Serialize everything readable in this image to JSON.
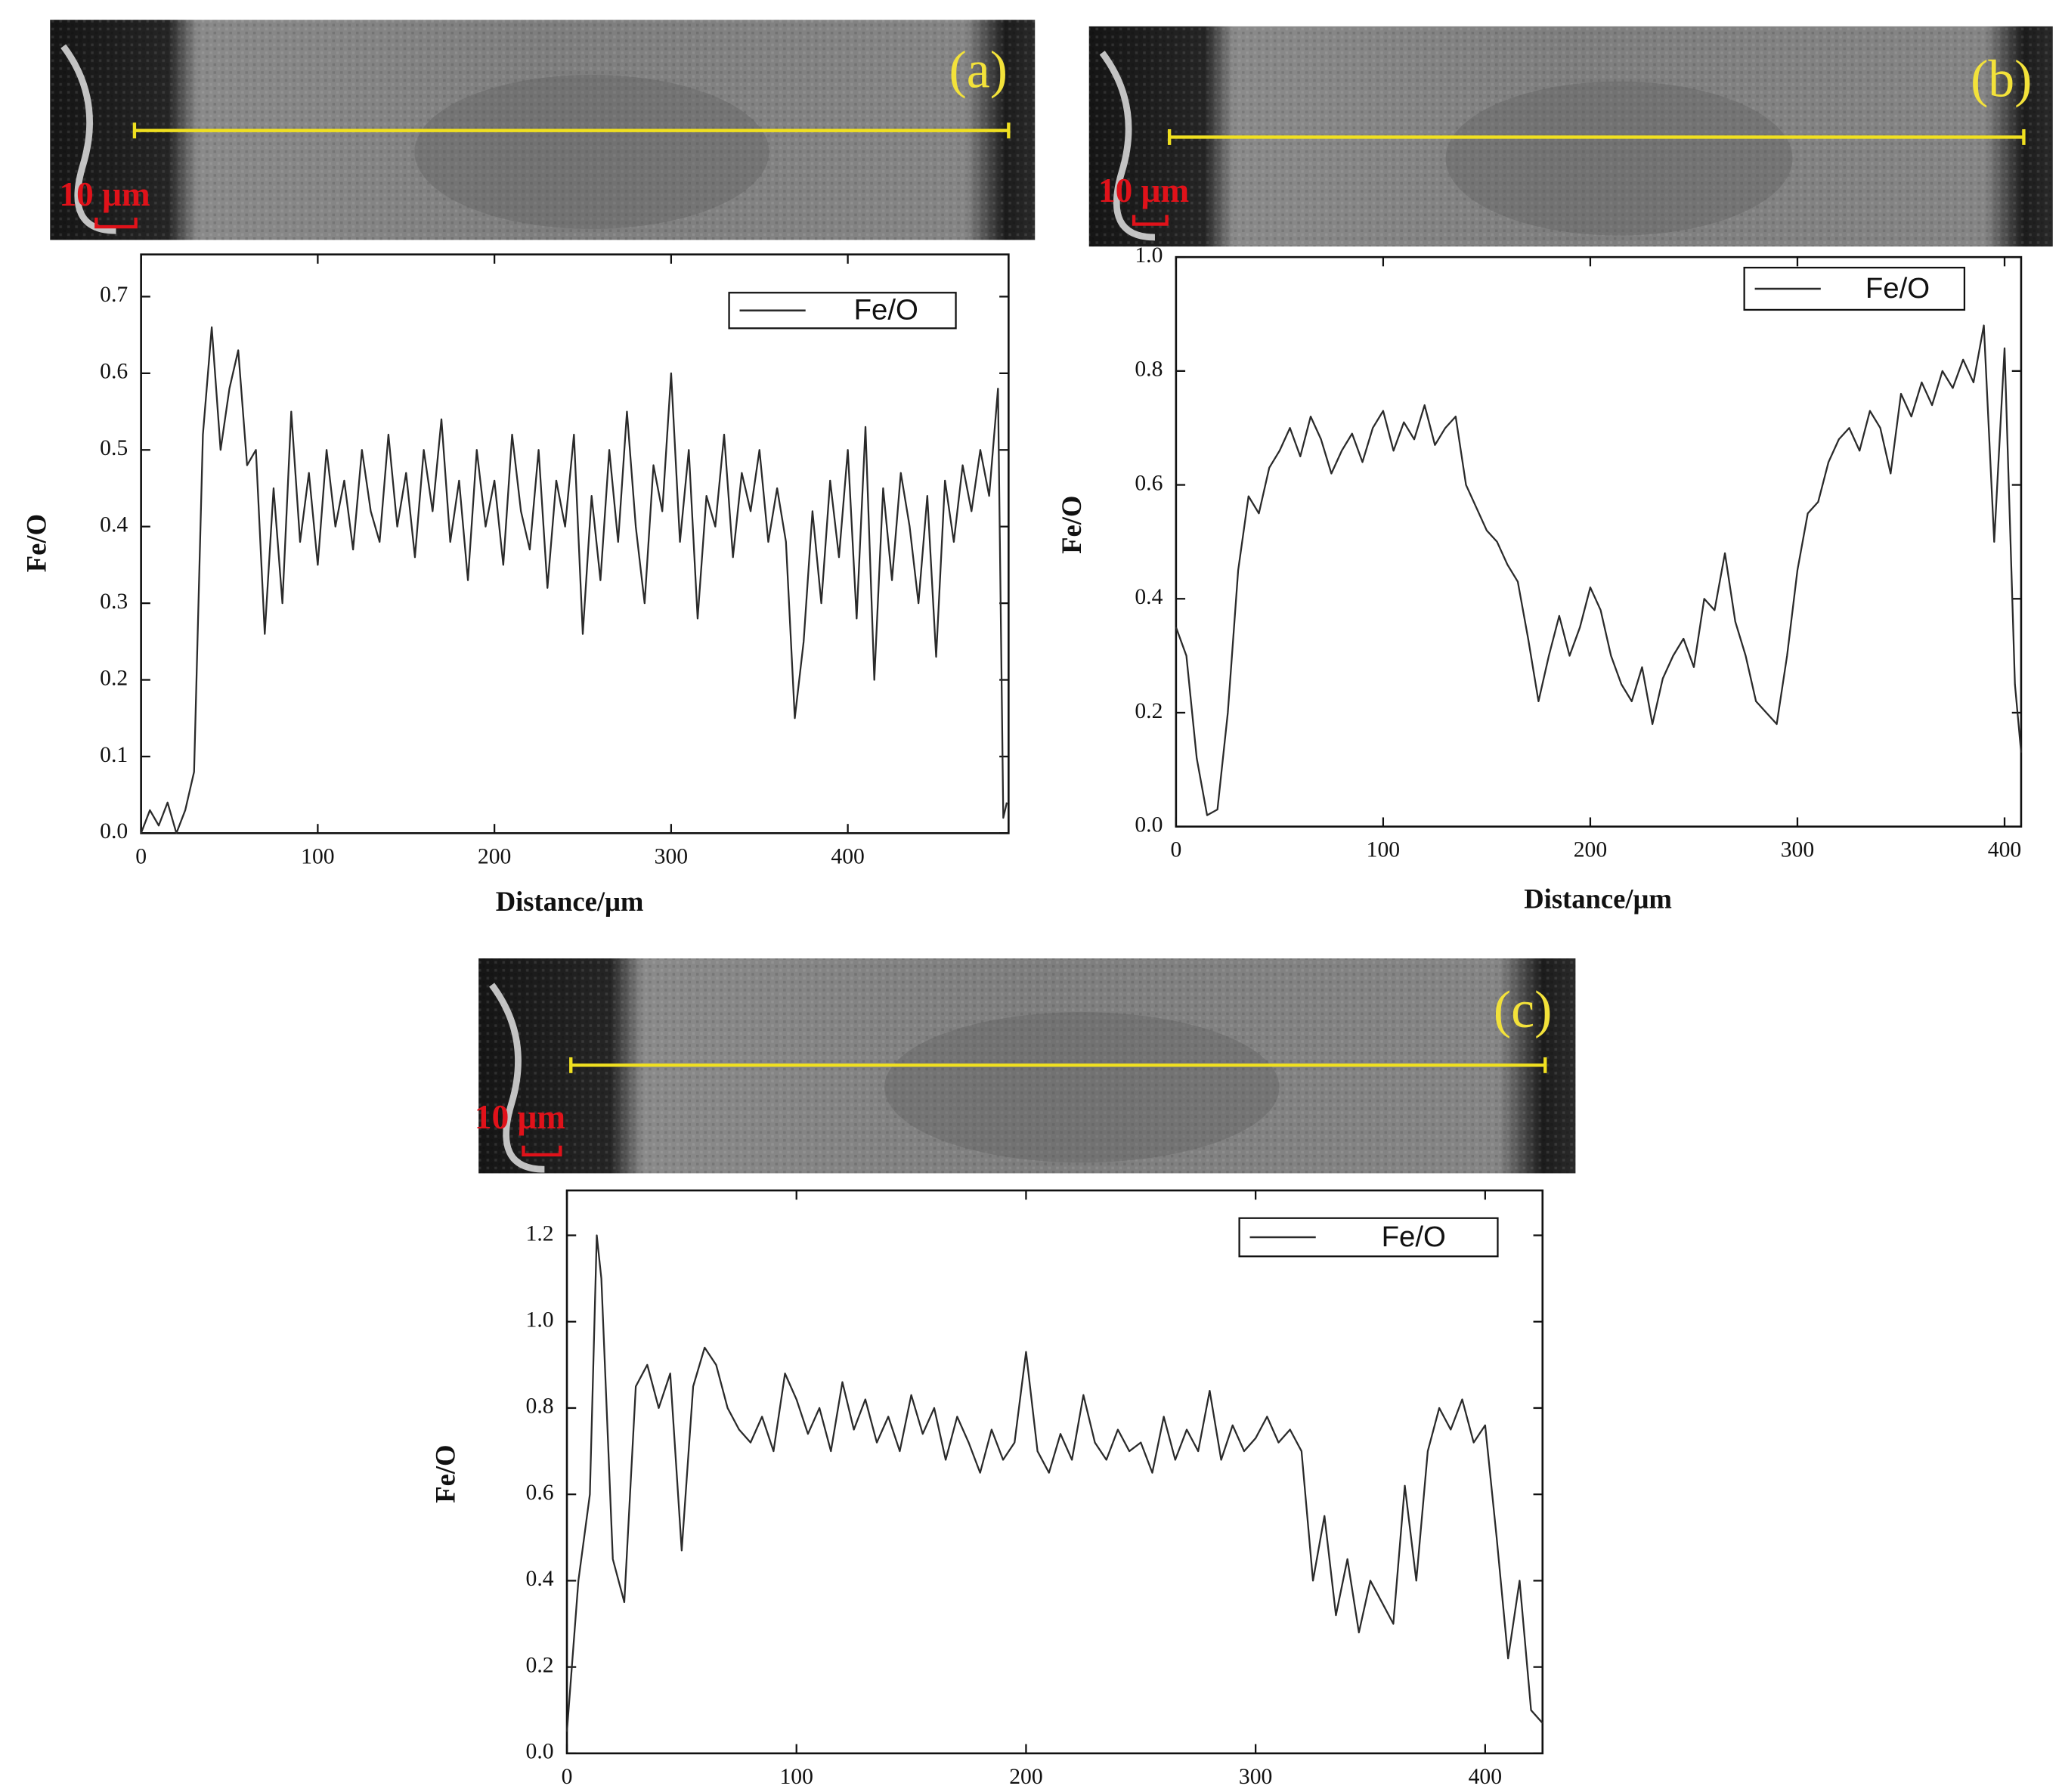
{
  "chart_data": [
    {
      "type": "line",
      "panel_label": "(a)",
      "scale_bar": "10 μm",
      "x_label": "Distance/μm",
      "y_label": "Fe/O",
      "xlim": [
        0,
        491
      ],
      "xticks": [
        0,
        100,
        200,
        300,
        400
      ],
      "ylim": [
        0,
        0.755
      ],
      "yticks": [
        {
          "value": 0,
          "label": "0.0"
        },
        0.1,
        0.2,
        0.3,
        0.4,
        0.5,
        0.6,
        0.7
      ],
      "x": [
        0,
        5,
        10,
        15,
        20,
        25,
        30,
        35,
        40,
        45,
        50,
        55,
        60,
        65,
        70,
        75,
        80,
        85,
        90,
        95,
        100,
        105,
        110,
        115,
        120,
        125,
        130,
        135,
        140,
        145,
        150,
        155,
        160,
        165,
        170,
        175,
        180,
        185,
        190,
        195,
        200,
        205,
        210,
        215,
        220,
        225,
        230,
        235,
        240,
        245,
        250,
        255,
        260,
        265,
        270,
        275,
        280,
        285,
        290,
        295,
        300,
        305,
        310,
        315,
        320,
        325,
        330,
        335,
        340,
        345,
        350,
        355,
        360,
        365,
        370,
        375,
        380,
        385,
        390,
        395,
        400,
        405,
        410,
        415,
        420,
        425,
        430,
        435,
        440,
        445,
        450,
        455,
        460,
        465,
        470,
        475,
        480,
        485,
        488,
        490
      ],
      "series": [
        {
          "name": "Fe/O",
          "color": "#2a2a2a",
          "values": [
            0.0,
            0.03,
            0.01,
            0.04,
            0.0,
            0.03,
            0.08,
            0.52,
            0.66,
            0.5,
            0.58,
            0.63,
            0.48,
            0.5,
            0.26,
            0.45,
            0.3,
            0.55,
            0.38,
            0.47,
            0.35,
            0.5,
            0.4,
            0.46,
            0.37,
            0.5,
            0.42,
            0.38,
            0.52,
            0.4,
            0.47,
            0.36,
            0.5,
            0.42,
            0.54,
            0.38,
            0.46,
            0.33,
            0.5,
            0.4,
            0.46,
            0.35,
            0.52,
            0.42,
            0.37,
            0.5,
            0.32,
            0.46,
            0.4,
            0.52,
            0.26,
            0.44,
            0.33,
            0.5,
            0.38,
            0.55,
            0.4,
            0.3,
            0.48,
            0.42,
            0.6,
            0.38,
            0.5,
            0.28,
            0.44,
            0.4,
            0.52,
            0.36,
            0.47,
            0.42,
            0.5,
            0.38,
            0.45,
            0.38,
            0.15,
            0.25,
            0.42,
            0.3,
            0.46,
            0.36,
            0.5,
            0.28,
            0.53,
            0.2,
            0.45,
            0.33,
            0.47,
            0.4,
            0.3,
            0.44,
            0.23,
            0.46,
            0.38,
            0.48,
            0.42,
            0.5,
            0.44,
            0.58,
            0.02,
            0.04
          ]
        }
      ]
    },
    {
      "type": "line",
      "panel_label": "(b)",
      "scale_bar": "10 μm",
      "x_label": "Distance/μm",
      "y_label": "Fe/O",
      "xlim": [
        0,
        408
      ],
      "xticks": [
        0,
        100,
        200,
        300,
        400
      ],
      "ylim": [
        0,
        1.0
      ],
      "yticks": [
        {
          "value": 0,
          "label": "0.0"
        },
        0.2,
        0.4,
        0.6,
        0.8,
        {
          "value": 1,
          "label": "1.0"
        }
      ],
      "x": [
        0,
        5,
        10,
        15,
        20,
        25,
        30,
        35,
        40,
        45,
        50,
        55,
        60,
        65,
        70,
        75,
        80,
        85,
        90,
        95,
        100,
        105,
        110,
        115,
        120,
        125,
        130,
        135,
        140,
        145,
        150,
        155,
        160,
        165,
        170,
        175,
        180,
        185,
        190,
        195,
        200,
        205,
        210,
        215,
        220,
        225,
        230,
        235,
        240,
        245,
        250,
        255,
        260,
        265,
        270,
        275,
        280,
        285,
        290,
        295,
        300,
        305,
        310,
        315,
        320,
        325,
        330,
        335,
        340,
        345,
        350,
        355,
        360,
        365,
        370,
        375,
        380,
        385,
        390,
        395,
        400,
        405,
        408
      ],
      "series": [
        {
          "name": "Fe/O",
          "color": "#2a2a2a",
          "values": [
            0.35,
            0.3,
            0.12,
            0.02,
            0.03,
            0.2,
            0.45,
            0.58,
            0.55,
            0.63,
            0.66,
            0.7,
            0.65,
            0.72,
            0.68,
            0.62,
            0.66,
            0.69,
            0.64,
            0.7,
            0.73,
            0.66,
            0.71,
            0.68,
            0.74,
            0.67,
            0.7,
            0.72,
            0.6,
            0.56,
            0.52,
            0.5,
            0.46,
            0.43,
            0.33,
            0.22,
            0.3,
            0.37,
            0.3,
            0.35,
            0.42,
            0.38,
            0.3,
            0.25,
            0.22,
            0.28,
            0.18,
            0.26,
            0.3,
            0.33,
            0.28,
            0.4,
            0.38,
            0.48,
            0.36,
            0.3,
            0.22,
            0.2,
            0.18,
            0.3,
            0.45,
            0.55,
            0.57,
            0.64,
            0.68,
            0.7,
            0.66,
            0.73,
            0.7,
            0.62,
            0.76,
            0.72,
            0.78,
            0.74,
            0.8,
            0.77,
            0.82,
            0.78,
            0.88,
            0.5,
            0.84,
            0.25,
            0.13
          ]
        }
      ]
    },
    {
      "type": "line",
      "panel_label": "(c)",
      "scale_bar": "10 μm",
      "y_label": "Fe/O",
      "xlim": [
        0,
        425
      ],
      "xticks": [
        0,
        100,
        200,
        300,
        400
      ],
      "ylim": [
        0,
        1.304
      ],
      "yticks": [
        {
          "value": 0,
          "label": "0.0"
        },
        0.2,
        0.4,
        0.6,
        0.8,
        {
          "value": 1,
          "label": "1.0"
        },
        1.2
      ],
      "x": [
        0,
        5,
        10,
        13,
        15,
        20,
        25,
        30,
        35,
        40,
        45,
        50,
        55,
        60,
        65,
        70,
        75,
        80,
        85,
        90,
        95,
        100,
        105,
        110,
        115,
        120,
        125,
        130,
        135,
        140,
        145,
        150,
        155,
        160,
        165,
        170,
        175,
        180,
        185,
        190,
        195,
        200,
        205,
        210,
        215,
        220,
        225,
        230,
        235,
        240,
        245,
        250,
        255,
        260,
        265,
        270,
        275,
        280,
        285,
        290,
        295,
        300,
        305,
        310,
        315,
        320,
        325,
        330,
        335,
        340,
        345,
        350,
        355,
        360,
        365,
        370,
        375,
        380,
        385,
        390,
        395,
        400,
        405,
        410,
        415,
        420,
        425
      ],
      "series": [
        {
          "name": "Fe/O",
          "color": "#2a2a2a",
          "values": [
            0.05,
            0.4,
            0.6,
            1.2,
            1.1,
            0.45,
            0.35,
            0.85,
            0.9,
            0.8,
            0.88,
            0.47,
            0.85,
            0.94,
            0.9,
            0.8,
            0.75,
            0.72,
            0.78,
            0.7,
            0.88,
            0.82,
            0.74,
            0.8,
            0.7,
            0.86,
            0.75,
            0.82,
            0.72,
            0.78,
            0.7,
            0.83,
            0.74,
            0.8,
            0.68,
            0.78,
            0.72,
            0.65,
            0.75,
            0.68,
            0.72,
            0.93,
            0.7,
            0.65,
            0.74,
            0.68,
            0.83,
            0.72,
            0.68,
            0.75,
            0.7,
            0.72,
            0.65,
            0.78,
            0.68,
            0.75,
            0.7,
            0.84,
            0.68,
            0.76,
            0.7,
            0.73,
            0.78,
            0.72,
            0.75,
            0.7,
            0.4,
            0.55,
            0.32,
            0.45,
            0.28,
            0.4,
            0.35,
            0.3,
            0.62,
            0.4,
            0.7,
            0.8,
            0.75,
            0.82,
            0.72,
            0.76,
            0.5,
            0.22,
            0.4,
            0.1,
            0.07
          ]
        }
      ]
    }
  ]
}
